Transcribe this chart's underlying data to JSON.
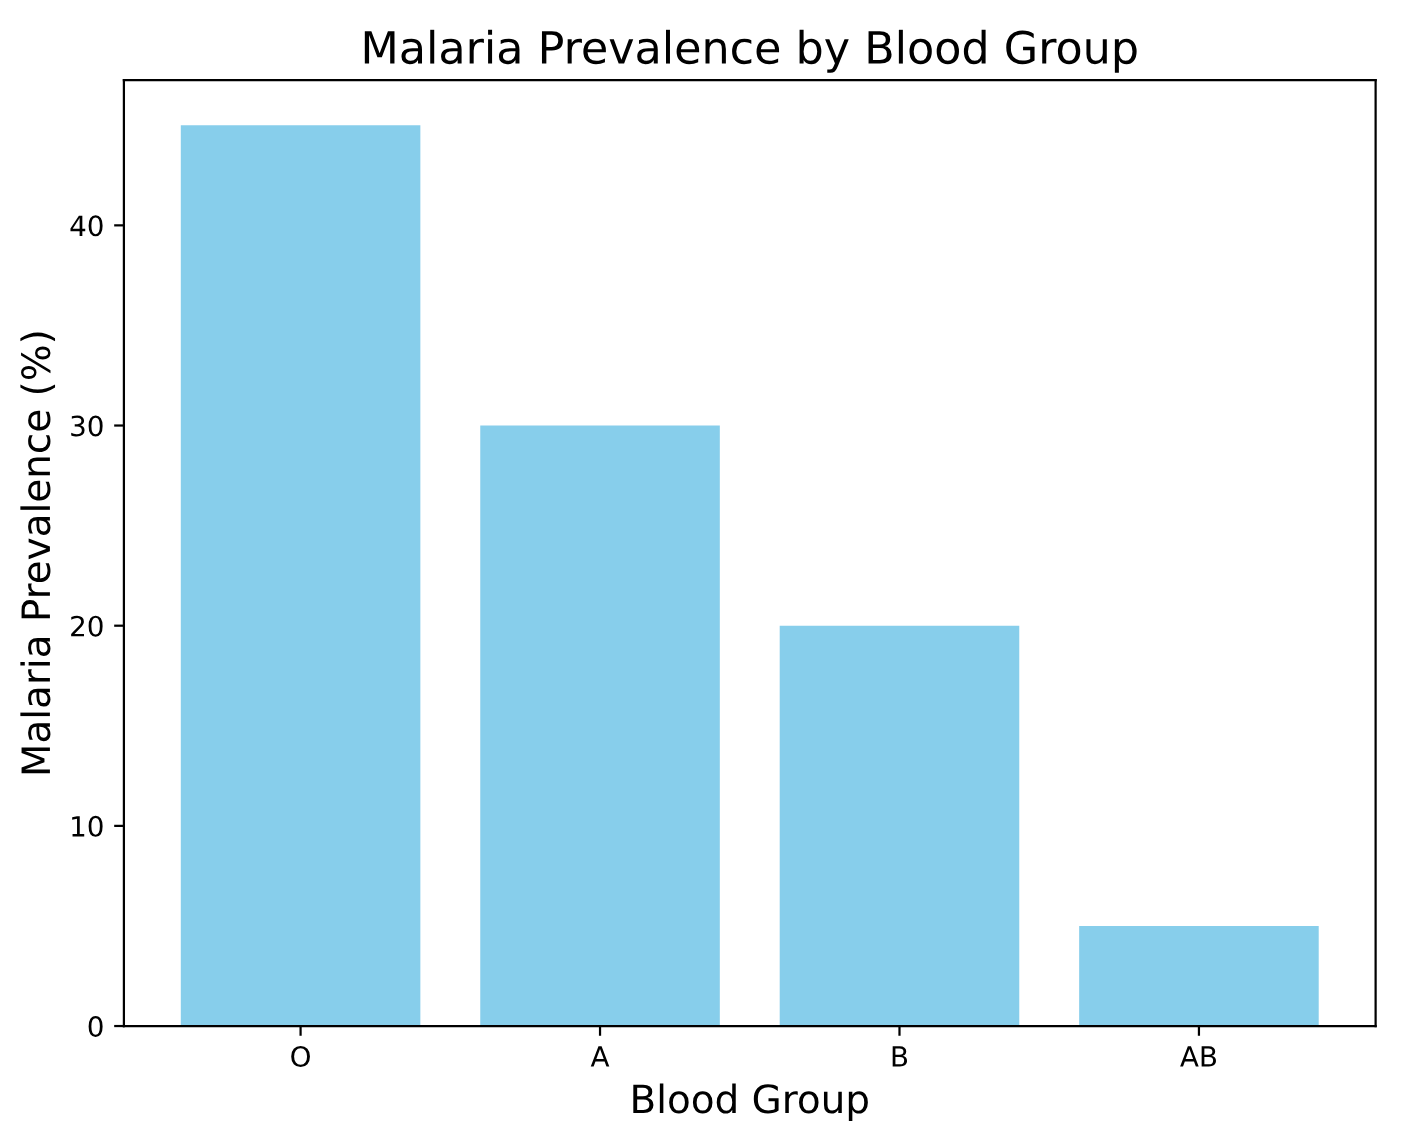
{
  "chart_data": {
    "type": "bar",
    "title": "Malaria Prevalence by Blood Group",
    "xlabel": "Blood Group",
    "ylabel": "Malaria Prevalence (%)",
    "categories": [
      "O",
      "A",
      "B",
      "AB"
    ],
    "values": [
      45,
      30,
      20,
      5
    ],
    "color": "#87ceeb",
    "ylim": [
      0,
      47.25
    ],
    "yticks": [
      0,
      10,
      20,
      30,
      40
    ],
    "grid": false,
    "legend": false
  }
}
